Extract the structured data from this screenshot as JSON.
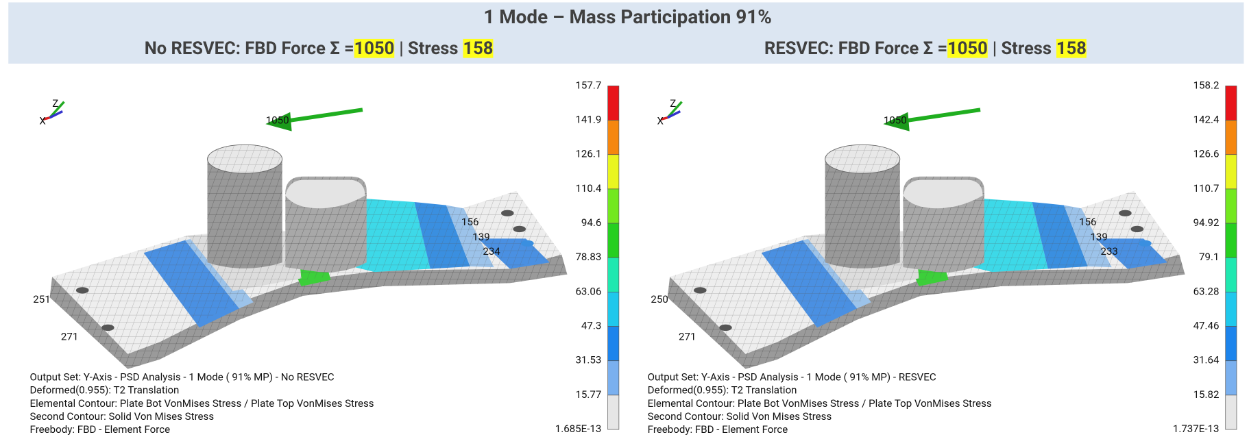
{
  "header": {
    "title": "1 Mode – Mass Participation 91%"
  },
  "panels": [
    {
      "subtitle": {
        "prefix": "No RESVEC:  FBD Force Σ =",
        "force": "1050",
        "separator": "| Stress",
        "stress": "158"
      },
      "triad": {
        "z": "Z",
        "x": "X"
      },
      "force_label": "1050",
      "node_labels": [
        "156",
        "139",
        "234",
        "251",
        "271"
      ],
      "legend": [
        "157.7",
        "141.9",
        "126.1",
        "110.4",
        "94.6",
        "78.83",
        "63.06",
        "47.3",
        "31.53",
        "15.77",
        "1.685E-13"
      ],
      "info": [
        "Output Set: Y-Axis - PSD Analysis - 1 Mode ( 91% MP) - No RESVEC",
        "Deformed(0.955): T2 Translation",
        "Elemental Contour: Plate Bot VonMises Stress / Plate Top VonMises Stress",
        "Second Contour: Solid Von Mises Stress",
        "Freebody: FBD - Element Force"
      ]
    },
    {
      "subtitle": {
        "prefix": "RESVEC:  FBD Force Σ =",
        "force": "1050",
        "separator": "| Stress",
        "stress": "158"
      },
      "triad": {
        "z": "Z",
        "x": "X"
      },
      "force_label": "1050",
      "node_labels": [
        "156",
        "139",
        "233",
        "250",
        "271"
      ],
      "legend": [
        "158.2",
        "142.4",
        "126.6",
        "110.7",
        "94.92",
        "79.1",
        "63.28",
        "47.46",
        "31.64",
        "15.82",
        "1.737E-13"
      ],
      "info": [
        "Output Set: Y-Axis - PSD Analysis - 1 Mode ( 91% MP) - RESVEC",
        "Deformed(0.955): T2 Translation",
        "Elemental Contour: Plate Bot VonMises Stress / Plate Top VonMises Stress",
        "Second Contour: Solid Von Mises Stress",
        "Freebody: FBD - Element Force"
      ]
    }
  ]
}
